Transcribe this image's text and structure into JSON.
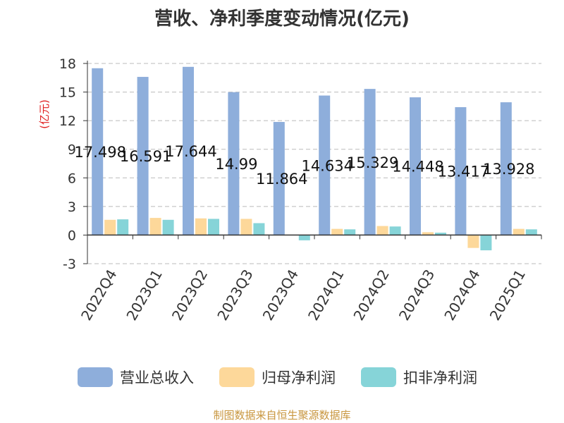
{
  "source_note": "制图数据来自恒生聚源数据库",
  "chart_data": {
    "type": "bar",
    "title": "营收、净利季度变动情况(亿元)",
    "ylabel": "(亿元)",
    "ylim": [
      -3,
      18
    ],
    "yticks": [
      18,
      15,
      12,
      9,
      6,
      3,
      0,
      -3
    ],
    "grid": true,
    "legend_position": "bottom",
    "categories": [
      "2022Q4",
      "2023Q1",
      "2023Q2",
      "2023Q3",
      "2023Q4",
      "2024Q1",
      "2024Q2",
      "2024Q3",
      "2024Q4",
      "2025Q1"
    ],
    "series": [
      {
        "name": "营业总收入",
        "color": "#8eaedb",
        "values": [
          17.498,
          16.591,
          17.644,
          14.99,
          11.864,
          14.634,
          15.329,
          14.448,
          13.417,
          13.928
        ],
        "labels": [
          "17.498",
          "16.591",
          "17.644",
          "14.99",
          "11.864",
          "14.634",
          "15.329",
          "14.448",
          "13.417",
          "13.928"
        ]
      },
      {
        "name": "归母净利润",
        "color": "#fdd89a",
        "values": [
          1.6,
          1.8,
          1.75,
          1.7,
          0.0,
          0.65,
          0.95,
          0.3,
          -1.35,
          0.65
        ]
      },
      {
        "name": "扣非净利润",
        "color": "#86d4d8",
        "values": [
          1.65,
          1.6,
          1.7,
          1.25,
          -0.55,
          0.6,
          0.9,
          0.25,
          -1.6,
          0.6
        ]
      }
    ]
  }
}
